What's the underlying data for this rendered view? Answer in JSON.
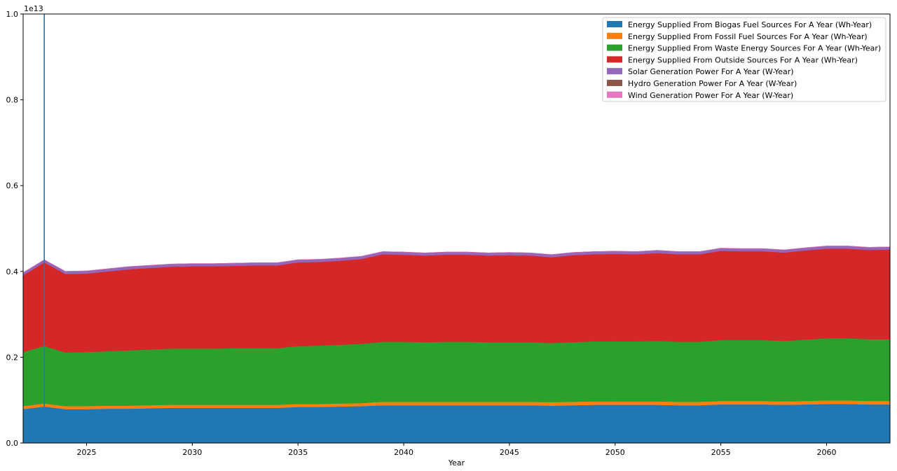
{
  "chart_data": {
    "type": "area",
    "stacked": true,
    "xlabel": "Year",
    "ylabel": "",
    "y_offset_label": "1e13",
    "y_multiplier": 10000000000000,
    "xlim": [
      2022,
      2063
    ],
    "ylim": [
      0,
      1.0
    ],
    "x_ticks": [
      2025,
      2030,
      2035,
      2040,
      2045,
      2050,
      2055,
      2060
    ],
    "y_ticks": [
      0.0,
      0.2,
      0.4,
      0.6,
      0.8,
      1.0
    ],
    "y_tick_labels": [
      "0.0",
      "0.2",
      "0.4",
      "0.6",
      "0.8",
      "1.0"
    ],
    "legend_position": "top-right",
    "vertical_marker_x": 2023,
    "vertical_marker_color": "#1f77b4",
    "x": [
      2022,
      2023,
      2024,
      2025,
      2026,
      2027,
      2028,
      2029,
      2030,
      2031,
      2032,
      2033,
      2034,
      2035,
      2036,
      2037,
      2038,
      2039,
      2040,
      2041,
      2042,
      2043,
      2044,
      2045,
      2046,
      2047,
      2048,
      2049,
      2050,
      2051,
      2052,
      2053,
      2054,
      2055,
      2056,
      2057,
      2058,
      2059,
      2060,
      2061,
      2062,
      2063
    ],
    "series": [
      {
        "name": "Energy Supplied From Biogas Fuel Sources For A Year (Wh-Year)",
        "color": "#1f77b4",
        "values": [
          0.079,
          0.085,
          0.079,
          0.079,
          0.08,
          0.08,
          0.081,
          0.082,
          0.082,
          0.082,
          0.082,
          0.082,
          0.082,
          0.084,
          0.084,
          0.085,
          0.086,
          0.088,
          0.088,
          0.088,
          0.088,
          0.088,
          0.088,
          0.088,
          0.088,
          0.087,
          0.088,
          0.089,
          0.089,
          0.089,
          0.089,
          0.088,
          0.088,
          0.09,
          0.09,
          0.09,
          0.089,
          0.09,
          0.091,
          0.091,
          0.09,
          0.09
        ]
      },
      {
        "name": "Energy Supplied From Fossil Fuel Sources For A Year (Wh-Year)",
        "color": "#ff7f0e",
        "values": [
          0.007,
          0.007,
          0.007,
          0.007,
          0.007,
          0.007,
          0.007,
          0.007,
          0.007,
          0.007,
          0.007,
          0.007,
          0.007,
          0.007,
          0.007,
          0.007,
          0.007,
          0.008,
          0.008,
          0.008,
          0.008,
          0.008,
          0.008,
          0.008,
          0.008,
          0.008,
          0.008,
          0.008,
          0.008,
          0.008,
          0.008,
          0.008,
          0.008,
          0.008,
          0.008,
          0.008,
          0.008,
          0.008,
          0.008,
          0.008,
          0.008,
          0.008
        ]
      },
      {
        "name": "Energy Supplied From Waste Energy Sources For A Year (Wh-Year)",
        "color": "#2ca02c",
        "values": [
          0.126,
          0.134,
          0.125,
          0.126,
          0.127,
          0.129,
          0.13,
          0.131,
          0.131,
          0.131,
          0.132,
          0.132,
          0.132,
          0.135,
          0.136,
          0.137,
          0.138,
          0.14,
          0.14,
          0.139,
          0.14,
          0.14,
          0.139,
          0.139,
          0.139,
          0.138,
          0.139,
          0.14,
          0.14,
          0.14,
          0.141,
          0.14,
          0.14,
          0.142,
          0.142,
          0.142,
          0.141,
          0.143,
          0.145,
          0.145,
          0.144,
          0.144
        ]
      },
      {
        "name": "Energy Supplied From Outside Sources For A Year (Wh-Year)",
        "color": "#d62728",
        "values": [
          0.179,
          0.195,
          0.183,
          0.183,
          0.186,
          0.189,
          0.19,
          0.191,
          0.192,
          0.192,
          0.192,
          0.193,
          0.193,
          0.195,
          0.195,
          0.196,
          0.198,
          0.204,
          0.203,
          0.202,
          0.203,
          0.203,
          0.202,
          0.203,
          0.202,
          0.2,
          0.203,
          0.203,
          0.204,
          0.203,
          0.205,
          0.204,
          0.204,
          0.208,
          0.207,
          0.207,
          0.206,
          0.208,
          0.209,
          0.209,
          0.208,
          0.209
        ]
      },
      {
        "name": "Solar Generation Power For A Year (W-Year)",
        "color": "#9467bd",
        "values": [
          0.006,
          0.006,
          0.006,
          0.006,
          0.006,
          0.006,
          0.006,
          0.006,
          0.006,
          0.006,
          0.006,
          0.006,
          0.006,
          0.006,
          0.006,
          0.006,
          0.006,
          0.006,
          0.006,
          0.006,
          0.006,
          0.006,
          0.006,
          0.006,
          0.006,
          0.006,
          0.006,
          0.006,
          0.006,
          0.006,
          0.006,
          0.006,
          0.006,
          0.006,
          0.006,
          0.006,
          0.006,
          0.006,
          0.006,
          0.006,
          0.006,
          0.006
        ]
      },
      {
        "name": "Hydro Generation Power For A Year (W-Year)",
        "color": "#8c564b",
        "values": [
          0.0002,
          0.0002,
          0.0002,
          0.0002,
          0.0002,
          0.0002,
          0.0002,
          0.0002,
          0.0002,
          0.0002,
          0.0002,
          0.0002,
          0.0002,
          0.0002,
          0.0002,
          0.0002,
          0.0002,
          0.0002,
          0.0002,
          0.0002,
          0.0002,
          0.0002,
          0.0002,
          0.0002,
          0.0002,
          0.0002,
          0.0002,
          0.0002,
          0.0002,
          0.0002,
          0.0002,
          0.0002,
          0.0002,
          0.0002,
          0.0002,
          0.0002,
          0.0002,
          0.0002,
          0.0002,
          0.0002,
          0.0002,
          0.0002
        ]
      },
      {
        "name": "Wind Generation Power For A Year (W-Year)",
        "color": "#e377c2",
        "values": [
          0.0002,
          0.0002,
          0.0002,
          0.0002,
          0.0002,
          0.0002,
          0.0002,
          0.0002,
          0.0002,
          0.0002,
          0.0002,
          0.0002,
          0.0002,
          0.0002,
          0.0002,
          0.0002,
          0.0002,
          0.0002,
          0.0002,
          0.0002,
          0.0002,
          0.0002,
          0.0002,
          0.0002,
          0.0002,
          0.0002,
          0.0002,
          0.0002,
          0.0002,
          0.0002,
          0.0002,
          0.0002,
          0.0002,
          0.0002,
          0.0002,
          0.0002,
          0.0002,
          0.0002,
          0.0002,
          0.0002,
          0.0002,
          0.0002
        ]
      }
    ]
  }
}
